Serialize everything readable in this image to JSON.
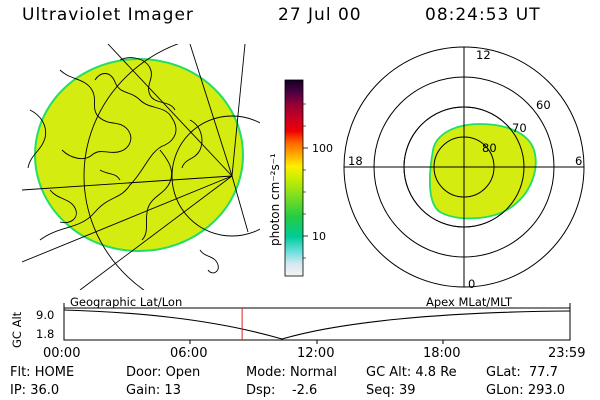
{
  "header": {
    "instrument": "Ultraviolet Imager",
    "date": "27 Jul 00",
    "time": "08:24:53 UT"
  },
  "colorbar": {
    "unit_label": "photon cm⁻²s⁻¹",
    "ticks": [
      "100",
      "10"
    ]
  },
  "polar_plot": {
    "mlt_labels": [
      "12",
      "18",
      "6",
      "0"
    ],
    "lat_labels": [
      "60",
      "70",
      "80"
    ]
  },
  "timeline": {
    "left_label": "Geographic Lat/Lon",
    "right_label": "Apex MLat/MLT",
    "axis_title": "GC Alt",
    "y_ticks": [
      "9.0",
      "1.8"
    ],
    "x_ticks": [
      "00:00",
      "06:00",
      "12:00",
      "18:00",
      "23:59"
    ],
    "current_time_fraction": 0.352
  },
  "info": {
    "row1": [
      {
        "label": "Flt:",
        "value": "HOME"
      },
      {
        "label": "Door:",
        "value": "Open"
      },
      {
        "label": "Mode:",
        "value": "Normal"
      },
      {
        "label": "GC Alt:",
        "value": "4.8 Re"
      },
      {
        "label": "GLat:",
        "value": "77.7"
      }
    ],
    "row2": [
      {
        "label": "IP:",
        "value": "36.0"
      },
      {
        "label": "Gain:",
        "value": "13"
      },
      {
        "label": "Dsp:",
        "value": "-2.6"
      },
      {
        "label": "Seq:",
        "value": "39"
      },
      {
        "label": "GLon:",
        "value": "293.0"
      }
    ]
  },
  "colors": {
    "disk_fill": "#d4ec10",
    "disk_edge": "#22dd66",
    "marker": "#dd2222"
  }
}
